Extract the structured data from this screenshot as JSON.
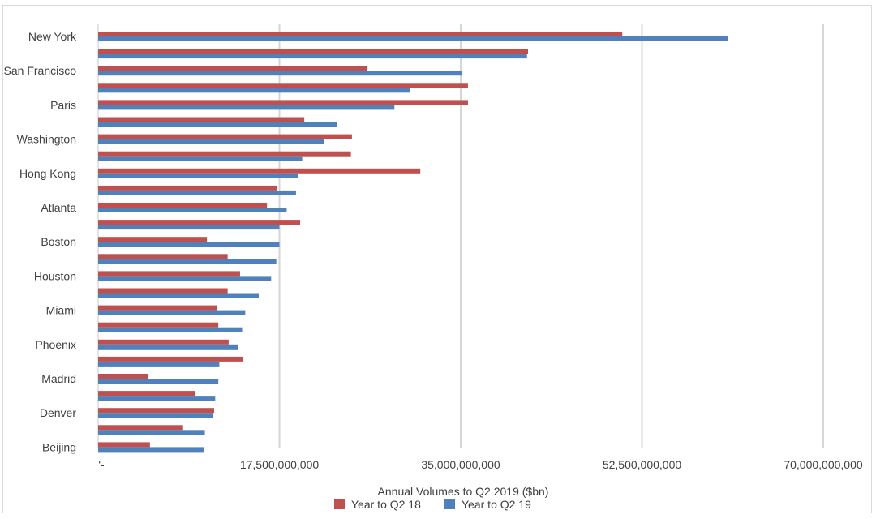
{
  "chart_data": {
    "type": "bar",
    "orientation": "horizontal",
    "title": "",
    "xlabel": "Annual Volumes to Q2 2019 ($bn)",
    "ylabel": "",
    "xlim": [
      0,
      70000000000
    ],
    "ticks": [
      0,
      17500000000,
      35000000000,
      52500000000,
      70000000000
    ],
    "tick_labels": [
      "'-",
      "17,500,000,000",
      "35,000,000,000",
      "52,500,000,000",
      "70,000,000,000"
    ],
    "grid": "vertical",
    "legend_position": "bottom",
    "categories": [
      "New York",
      "",
      "San Francisco",
      "",
      "Paris",
      "",
      "Washington",
      "",
      "Hong Kong",
      "",
      "Atlanta",
      "",
      "Boston",
      "",
      "Houston",
      "",
      "Miami",
      "",
      "Phoenix",
      "",
      "Madrid",
      "",
      "Denver",
      "",
      "Beijing"
    ],
    "series": [
      {
        "name": "Year to Q2 18",
        "color": "#c0504d",
        "values": [
          50600000000,
          41500000000,
          26000000000,
          35700000000,
          35700000000,
          19900000000,
          24500000000,
          24400000000,
          31100000000,
          17300000000,
          16300000000,
          19500000000,
          10500000000,
          12500000000,
          13700000000,
          12500000000,
          11500000000,
          11600000000,
          12600000000,
          14000000000,
          4800000000,
          9400000000,
          11200000000,
          8200000000,
          5000000000
        ]
      },
      {
        "name": "Year to Q2 19",
        "color": "#4f81bd",
        "values": [
          60800000000,
          41400000000,
          35100000000,
          30100000000,
          28600000000,
          23100000000,
          21800000000,
          19700000000,
          19300000000,
          19100000000,
          18200000000,
          17500000000,
          17500000000,
          17200000000,
          16700000000,
          15500000000,
          14200000000,
          13900000000,
          13500000000,
          11700000000,
          11600000000,
          11300000000,
          11100000000,
          10300000000,
          10200000000
        ]
      }
    ]
  }
}
